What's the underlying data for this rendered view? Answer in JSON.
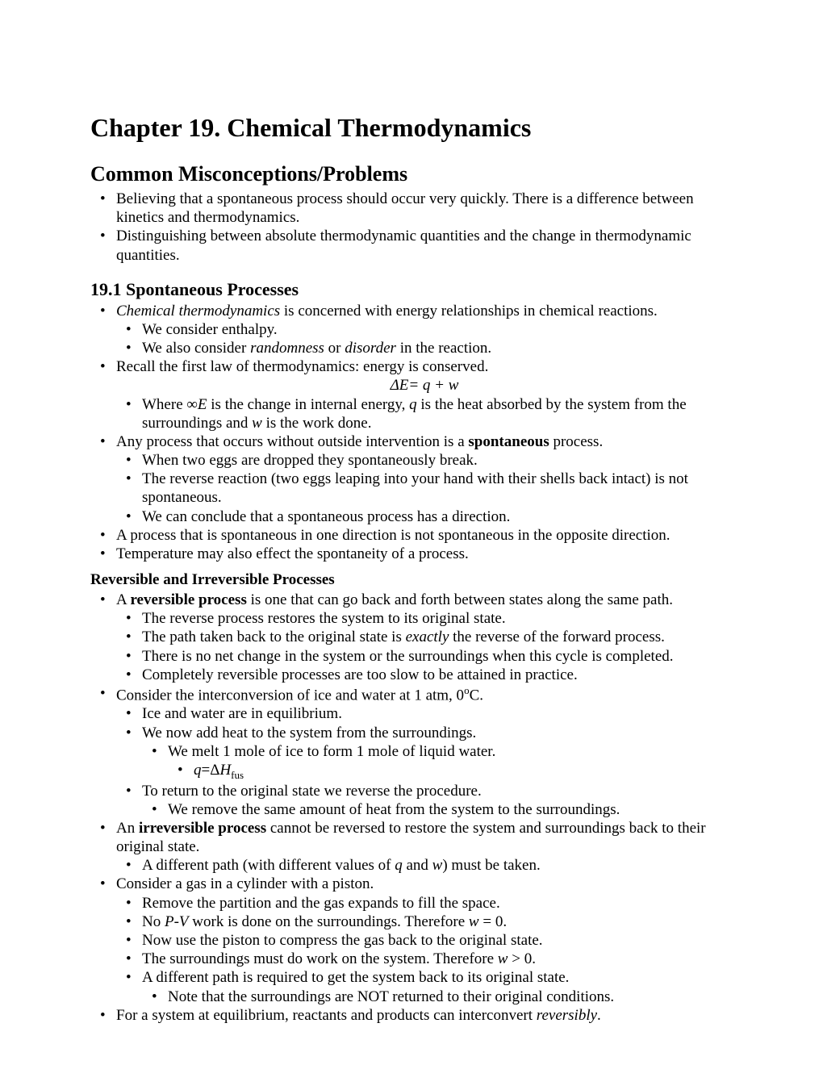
{
  "title": "Chapter 19. Chemical Thermodynamics",
  "h2": "Common Misconceptions/Problems",
  "miscon": [
    "Believing that a spontaneous process should occur very quickly.  There is a difference between kinetics and thermodynamics.",
    "Distinguishing between absolute thermodynamic quantities and the change in thermodynamic quantities."
  ],
  "h3": "19.1 Spontaneous Processes",
  "s1": {
    "b1_pre": "Chemical thermodynamics",
    "b1_post": " is concerned with energy relationships in chemical reactions.",
    "b1a": "We consider enthalpy.",
    "b1b_pre": "We also consider ",
    "b1b_i1": "randomness",
    "b1b_mid": " or ",
    "b1b_i2": "disorder",
    "b1b_post": " in the reaction.",
    "b2": "Recall the first law of thermodynamics: energy is conserved.",
    "eq": "ΔE= q + w",
    "b2a_pre": "Where ∞",
    "b2a_i1": "E",
    "b2a_mid1": " is the change in internal energy, ",
    "b2a_i2": "q",
    "b2a_mid2": " is the heat absorbed by the system from the surroundings and ",
    "b2a_i3": "w",
    "b2a_post": " is the work done.",
    "b3_pre": "Any process that occurs without outside intervention is a ",
    "b3_b": "spontaneous",
    "b3_post": " process.",
    "b3a": "When two eggs are dropped they spontaneously break.",
    "b3b": "The reverse reaction (two eggs leaping into your hand with their shells back intact) is not spontaneous.",
    "b3c": "We can conclude that a spontaneous process has a direction.",
    "b4": "A process that is spontaneous in one direction is not spontaneous in the opposite direction.",
    "b5": "Temperature may also effect the spontaneity of a process."
  },
  "h4": "Reversible and Irreversible Processes",
  "s2": {
    "b1_pre": "A ",
    "b1_b": "reversible process",
    "b1_post": " is one that can go back and forth between states along the same path.",
    "b1a": "The reverse process restores the system to its original state.",
    "b1b_pre": "The path taken back to the original state is ",
    "b1b_i": "exactly",
    "b1b_post": " the reverse of the forward process.",
    "b1c": "There is no net change in the system or the surroundings when this cycle is completed.",
    "b1d": "Completely reversible processes are too slow to be attained in practice.",
    "b2_pre": "Consider the interconversion of ice and water at 1 atm, 0",
    "b2_sup": "o",
    "b2_post": "C.",
    "b2a": "Ice and water are in equilibrium.",
    "b2b": "We now add heat to the system from the surroundings.",
    "b2b1": "We melt 1 mole of ice to form 1 mole of liquid water.",
    "b2b1a_pre": "q",
    "b2b1a_mid": "=Δ",
    "b2b1a_i": "H",
    "b2b1a_sub": "fus",
    "b2c": "To return to the original state we reverse the procedure.",
    "b2c1": "We remove the same amount of heat from the system to the surroundings.",
    "b3_pre": "An ",
    "b3_b": "irreversible process",
    "b3_post": " cannot be reversed to restore the system and surroundings back to their original state.",
    "b3a_pre": "A different path (with different values of ",
    "b3a_i1": "q",
    "b3a_mid": " and ",
    "b3a_i2": "w",
    "b3a_post": ") must be taken.",
    "b4": "Consider a gas in a cylinder with a piston.",
    "b4a": "Remove the partition and the gas expands to fill the space.",
    "b4b_pre": "No ",
    "b4b_i": "P-V",
    "b4b_mid": " work is done on the surroundings.  Therefore   ",
    "b4b_i2": "w",
    "b4b_post": " = 0.",
    "b4c": "Now use the piston to compress the gas back to the original state.",
    "b4d_pre": "The surroundings must do work on the system.  Therefore   ",
    "b4d_i": "w",
    "b4d_post": " > 0.",
    "b4e": "A different path is required to get the system back to its original state.",
    "b4e1": "Note that the surroundings are NOT returned to their original conditions.",
    "b5_pre": "For a system at equilibrium, reactants and products can interconvert ",
    "b5_i": "reversibly",
    "b5_post": "."
  }
}
